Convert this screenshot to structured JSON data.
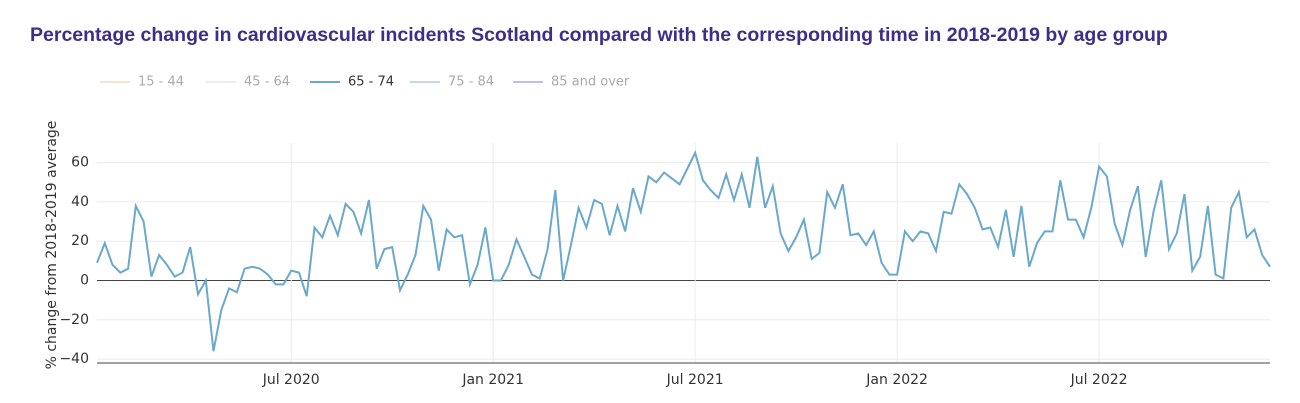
{
  "chart_data": {
    "type": "line",
    "title": "Percentage change in cardiovascular incidents Scotland compared with the corresponding time in 2018-2019 by age group",
    "y_label": "% change from 2018-2019 average",
    "categories": [
      null,
      null,
      null,
      null,
      null,
      null,
      null,
      null,
      null,
      null,
      null,
      null,
      null,
      null,
      null,
      null,
      null,
      null,
      null,
      null,
      null,
      null,
      null,
      null,
      null,
      "Jul 2020",
      null,
      null,
      null,
      null,
      null,
      null,
      null,
      null,
      null,
      null,
      null,
      null,
      null,
      null,
      null,
      null,
      null,
      null,
      null,
      null,
      null,
      null,
      null,
      null,
      null,
      "Jan 2021",
      null,
      null,
      null,
      null,
      null,
      null,
      null,
      null,
      null,
      null,
      null,
      null,
      null,
      null,
      null,
      null,
      null,
      null,
      null,
      null,
      null,
      null,
      null,
      null,
      null,
      "Jul 2021",
      null,
      null,
      null,
      null,
      null,
      null,
      null,
      null,
      null,
      null,
      null,
      null,
      null,
      null,
      null,
      null,
      null,
      null,
      null,
      null,
      null,
      null,
      null,
      null,
      null,
      "Jan 2022",
      null,
      null,
      null,
      null,
      null,
      null,
      null,
      null,
      null,
      null,
      null,
      null,
      null,
      null,
      null,
      null,
      null,
      null,
      null,
      null,
      null,
      null,
      null,
      null,
      null,
      "Jul 2022",
      null,
      null,
      null,
      null,
      null,
      null,
      null,
      null,
      null,
      null,
      null,
      null,
      null,
      null,
      null,
      null,
      null,
      null,
      null,
      null,
      null,
      null
    ],
    "series": [
      {
        "name": "15 - 44",
        "color": "#f3c6a2",
        "visible": false
      },
      {
        "name": "45 - 64",
        "color": "#d6dbf0",
        "visible": false
      },
      {
        "name": "65 - 74",
        "color": "#6aa8cc",
        "visible": true,
        "values": [
          9,
          19,
          8,
          4,
          6,
          38,
          30,
          2,
          13,
          8,
          2,
          4,
          17,
          -7,
          0,
          -36,
          -15,
          -4,
          -6,
          6,
          7,
          6,
          3,
          -2,
          -2,
          5,
          4,
          -8,
          27,
          22,
          33,
          23,
          39,
          35,
          24,
          41,
          6,
          16,
          17,
          -5,
          3,
          13,
          38,
          31,
          5,
          26,
          22,
          23,
          -2,
          8,
          27,
          0,
          0,
          8,
          21,
          12,
          3,
          1,
          16,
          46,
          0,
          18,
          37,
          27,
          41,
          39,
          23,
          38,
          25,
          47,
          35,
          53,
          50,
          55,
          52,
          49,
          57,
          65,
          51,
          46,
          42,
          54,
          41,
          54,
          37,
          63,
          37,
          48,
          24,
          15,
          22,
          31,
          11,
          14,
          45,
          37,
          49,
          23,
          24,
          18,
          25,
          9,
          3,
          3,
          25,
          20,
          25,
          24,
          15,
          35,
          34,
          49,
          44,
          37,
          26,
          27,
          17,
          36,
          12,
          38,
          7,
          19,
          25,
          25,
          51,
          31,
          31,
          22,
          37,
          58,
          53,
          29,
          18,
          36,
          48,
          12,
          35,
          51,
          16,
          24,
          44,
          5,
          12,
          38,
          3,
          1,
          37,
          45,
          22,
          26,
          13,
          7
        ]
      },
      {
        "name": "75 - 84",
        "color": "#8eafd8",
        "visible": false
      },
      {
        "name": "85 and over",
        "color": "#7e85c8",
        "visible": false
      }
    ],
    "ylim": [
      -42,
      70
    ],
    "yticks": [
      {
        "value": -40,
        "label": "−40"
      },
      {
        "value": -20,
        "label": "−20"
      },
      0,
      20,
      40,
      60
    ],
    "grid": true
  }
}
